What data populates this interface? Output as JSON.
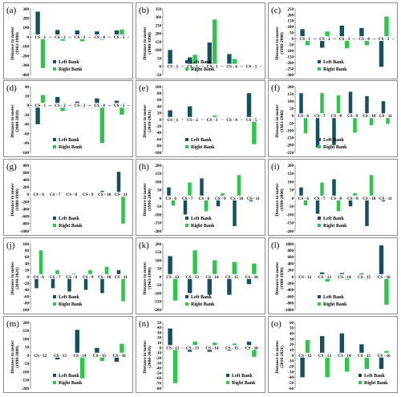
{
  "colors": {
    "left_bank": "#17505c",
    "right_bank": "#2ec64a"
  },
  "legend_labels": {
    "left": "Left Bank",
    "right": "Right Bank"
  },
  "chart_data": [
    {
      "type": "bar",
      "letter": "(a)",
      "ylabel": [
        "Distance in meter",
        "(1963-1980)"
      ],
      "ylim": [
        -400,
        300
      ],
      "yticks": [
        300,
        200,
        100,
        0,
        -100,
        -200,
        -300,
        -400
      ],
      "categories": [
        "CS - 1",
        "CS - 2",
        "CS - 3",
        "CS - 4",
        "CS - 5"
      ],
      "series": [
        {
          "name": "Left Bank",
          "values": [
            270,
            75,
            70,
            60,
            70
          ]
        },
        {
          "name": "Right Bank",
          "values": [
            -330,
            -40,
            -45,
            -30,
            80
          ]
        }
      ],
      "legend": "bottom-middle"
    },
    {
      "type": "bar",
      "letter": "(b)",
      "ylabel": [
        "Distance in meter",
        "(1980-1990)"
      ],
      "ylim": [
        -50,
        350
      ],
      "yticks": [
        350,
        300,
        250,
        200,
        150,
        100,
        50,
        0,
        -50
      ],
      "categories": [
        "CS - 1",
        "CS - 2",
        "CS - 3",
        "CS - 4",
        "CS - 5"
      ],
      "series": [
        {
          "name": "Left Bank",
          "values": [
            100,
            55,
            145,
            75,
            10
          ]
        },
        {
          "name": "Right Bank",
          "values": [
            -15,
            70,
            285,
            45,
            15
          ]
        }
      ],
      "legend": "bottom-middle"
    },
    {
      "type": "bar",
      "letter": "(c)",
      "ylabel": [
        "Distance in meter",
        "(1990-2000)"
      ],
      "ylim": [
        -300,
        250
      ],
      "yticks": [
        250,
        200,
        150,
        100,
        50,
        0,
        -50,
        -100,
        -150,
        -200,
        -250,
        -300
      ],
      "categories": [
        "CS - 1",
        "CS - 2",
        "CS - 3",
        "CS - 4",
        "CS - 5"
      ],
      "series": [
        {
          "name": "Left Bank",
          "values": [
            80,
            -75,
            110,
            90,
            -235
          ]
        },
        {
          "name": "Right Bank",
          "values": [
            -55,
            60,
            -80,
            -55,
            185
          ]
        }
      ],
      "legend": "bottom-middle"
    },
    {
      "type": "bar",
      "letter": "(d)",
      "ylabel": [
        "Distance in meter",
        "(2000-2010)"
      ],
      "ylim": [
        -100,
        40
      ],
      "yticks": [
        40,
        20,
        0,
        -20,
        -40,
        -60,
        -80,
        -100
      ],
      "categories": [
        "CS - 1",
        "CS - 2",
        "CS - 3",
        "CS - 4",
        "CS - 5"
      ],
      "series": [
        {
          "name": "Left Bank",
          "values": [
            -40,
            18,
            8,
            15,
            10
          ]
        },
        {
          "name": "Right Bank",
          "values": [
            22,
            -12,
            -5,
            -80,
            -20
          ]
        }
      ],
      "legend": "bottom-middle"
    },
    {
      "type": "bar",
      "letter": "(e)",
      "ylabel": [
        "Distance in meter",
        "(2010-2021)"
      ],
      "ylim": [
        -100,
        100
      ],
      "yticks": [
        100,
        80,
        60,
        40,
        20,
        0,
        -20,
        -40,
        -60,
        -80,
        -100
      ],
      "categories": [
        "CS - 1",
        "CS - 2",
        "CS - 3",
        "CS - 4",
        "CS - 5"
      ],
      "series": [
        {
          "name": "Left Bank",
          "values": [
            28,
            40,
            5,
            8,
            80
          ]
        },
        {
          "name": "Right Bank",
          "values": [
            -8,
            8,
            12,
            2,
            -75
          ]
        }
      ],
      "legend": "bottom-middle"
    },
    {
      "type": "bar",
      "letter": "(f)",
      "ylabel": [
        "Distance in meter",
        "(1963-1980)"
      ],
      "ylim": [
        -250,
        200
      ],
      "yticks": [
        200,
        150,
        100,
        50,
        0,
        -50,
        -100,
        -150,
        -200,
        -250
      ],
      "categories": [
        "CS - 6",
        "CS - 7",
        "CS - 8",
        "CS - 9",
        "CS - 10",
        "CS - 11"
      ],
      "series": [
        {
          "name": "Left Bank",
          "values": [
            155,
            -215,
            -200,
            165,
            135,
            100
          ]
        },
        {
          "name": "Right Bank",
          "values": [
            -120,
            155,
            140,
            -115,
            -65,
            -55
          ]
        }
      ],
      "legend": "bottom-middle"
    },
    {
      "type": "bar",
      "letter": "(g)",
      "ylabel": [
        "Distance in meter",
        "(1980-1990)"
      ],
      "ylim": [
        -1000,
        800
      ],
      "yticks": [
        800,
        600,
        400,
        200,
        0,
        -200,
        -400,
        -600,
        -800,
        -1000
      ],
      "categories": [
        "CS - 6",
        "CS - 7",
        "CS - 8",
        "CS - 9",
        "CS - 10",
        "CS - 11"
      ],
      "series": [
        {
          "name": "Left Bank",
          "values": [
            -20,
            -25,
            -15,
            -30,
            100,
            620
          ]
        },
        {
          "name": "Right Bank",
          "values": [
            20,
            15,
            -10,
            20,
            -30,
            -800
          ]
        }
      ],
      "legend": "bottom-middle"
    },
    {
      "type": "bar",
      "letter": "(h)",
      "ylabel": [
        "Distance in meter",
        "(1990-2000)"
      ],
      "ylim": [
        -200,
        200
      ],
      "yticks": [
        200,
        150,
        100,
        50,
        0,
        -50,
        -100,
        -150,
        -200
      ],
      "categories": [
        "CS - 6",
        "CS - 7",
        "CS - 8",
        "CS - 9",
        "CS - 10",
        "CS - 11"
      ],
      "series": [
        {
          "name": "Left Bank",
          "values": [
            65,
            -100,
            120,
            -50,
            -170,
            -20
          ]
        },
        {
          "name": "Right Bank",
          "values": [
            -45,
            95,
            -80,
            30,
            140,
            10
          ]
        }
      ],
      "legend": "bottom-middle"
    },
    {
      "type": "bar",
      "letter": "(i)",
      "ylabel": [
        "Distance in meter",
        "(1990-2000)"
      ],
      "ylim": [
        -200,
        200
      ],
      "yticks": [
        200,
        150,
        100,
        50,
        0,
        -50,
        -100,
        -150,
        -200
      ],
      "categories": [
        "CS - 6",
        "CS - 7",
        "CS - 8",
        "CS - 9",
        "CS - 10",
        "CS - 11"
      ],
      "series": [
        {
          "name": "Left Bank",
          "values": [
            65,
            -95,
            115,
            -50,
            -170,
            -20
          ]
        },
        {
          "name": "Right Bank",
          "values": [
            -45,
            95,
            -80,
            30,
            140,
            10
          ]
        }
      ],
      "legend": "bottom-middle"
    },
    {
      "type": "bar",
      "letter": "(j)",
      "ylabel": [
        "Distance in meter",
        "(2010-2021)"
      ],
      "ylim": [
        -100,
        100
      ],
      "yticks": [
        100,
        80,
        60,
        40,
        20,
        0,
        -20,
        -40,
        -60,
        -80,
        -100
      ],
      "categories": [
        "CS - 6",
        "CS - 7",
        "CS - 8",
        "CS - 9",
        "CS - 10",
        "CS - 11"
      ],
      "series": [
        {
          "name": "Left Bank",
          "values": [
            -35,
            -35,
            -45,
            -40,
            -50,
            20
          ]
        },
        {
          "name": "Right Bank",
          "values": [
            80,
            20,
            10,
            20,
            30,
            -75
          ]
        }
      ],
      "legend": "bottom-middle"
    },
    {
      "type": "bar",
      "letter": "(k)",
      "ylabel": [
        "Distance in meter",
        "(1963-1980)"
      ],
      "ylim": [
        -200,
        200
      ],
      "yticks": [
        200,
        150,
        100,
        50,
        0,
        -50,
        -100,
        -150,
        -200
      ],
      "categories": [
        "CS - 12",
        "CS - 13",
        "CS - 14",
        "CS - 15",
        "CS - 16"
      ],
      "series": [
        {
          "name": "Left Bank",
          "values": [
            125,
            -100,
            -110,
            -110,
            -45
          ]
        },
        {
          "name": "Right Bank",
          "values": [
            -145,
            160,
            100,
            90,
            80
          ]
        }
      ],
      "legend": "bottom-middle"
    },
    {
      "type": "bar",
      "letter": "(l)",
      "ylabel": [
        "Distance in meter",
        "(1980-1990)"
      ],
      "ylim": [
        -1000,
        1000
      ],
      "yticks": [
        1000,
        800,
        600,
        400,
        200,
        0,
        -200,
        -400,
        -600,
        -800,
        -1000
      ],
      "categories": [
        "CS - 12",
        "CS - 13",
        "CS - 14",
        "CS - 15",
        "CS - 16"
      ],
      "series": [
        {
          "name": "Left Bank",
          "values": [
            20,
            130,
            110,
            100,
            950
          ]
        },
        {
          "name": "Right Bank",
          "values": [
            -20,
            -150,
            -90,
            -80,
            -850
          ]
        }
      ],
      "legend": "bottom-middle"
    },
    {
      "type": "bar",
      "letter": "(m)",
      "ylabel": [
        "Distance in meter",
        "(1990-2000)"
      ],
      "ylim": [
        -200,
        200
      ],
      "yticks": [
        200,
        150,
        100,
        50,
        0,
        -50,
        -100,
        -150,
        -200
      ],
      "categories": [
        "CS - 12",
        "CS - 13",
        "CS - 14",
        "CS - 15",
        "CS - 16"
      ],
      "series": [
        {
          "name": "Left Bank",
          "values": [
            -15,
            -25,
            155,
            45,
            -40
          ]
        },
        {
          "name": "Right Bank",
          "values": [
            10,
            15,
            -140,
            -35,
            70
          ]
        }
      ],
      "legend": "bottom-middle"
    },
    {
      "type": "bar",
      "letter": "(n)",
      "ylabel": [
        "Distance in meter",
        "(2000-2010)"
      ],
      "ylim": [
        -80,
        50
      ],
      "yticks": [
        50,
        40,
        30,
        20,
        10,
        0,
        -10,
        -20,
        -30,
        -40,
        -50,
        -60,
        -70,
        -80
      ],
      "categories": [
        "CS - 12",
        "CS - 13",
        "CS - 14",
        "CS - 15",
        "CS - 16"
      ],
      "series": [
        {
          "name": "Left Bank",
          "values": [
            38,
            -8,
            -8,
            -6,
            12
          ]
        },
        {
          "name": "Right Bank",
          "values": [
            -70,
            12,
            10,
            8,
            -18
          ]
        }
      ],
      "legend": "bottom-right"
    },
    {
      "type": "bar",
      "letter": "(o)",
      "ylabel": [
        "Distance in meter",
        "(2010-2021)"
      ],
      "ylim": [
        -60,
        60
      ],
      "yticks": [
        60,
        50,
        40,
        30,
        20,
        10,
        0,
        -10,
        -20,
        -30,
        -40,
        -50,
        -60
      ],
      "categories": [
        "CS - 12",
        "CS - 13",
        "CS - 14",
        "CS - 15",
        "CS - 16"
      ],
      "series": [
        {
          "name": "Left Bank",
          "values": [
            -40,
            35,
            40,
            20,
            -25
          ]
        },
        {
          "name": "Right Bank",
          "values": [
            28,
            -40,
            -30,
            -25,
            8
          ]
        }
      ],
      "legend": "bottom-right"
    }
  ]
}
